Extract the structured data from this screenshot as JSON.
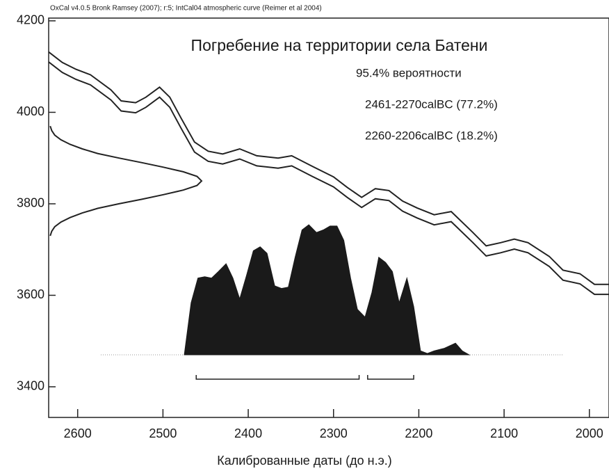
{
  "chart_data": {
    "type": "calibration",
    "header": "OxCal v4.0.5 Bronk Ramsey (2007); r:5; IntCal04 atmospheric curve (Reimer et al 2004)",
    "title": "Погребение на территории села Батени",
    "probability_label": "95.4% вероятности",
    "xlabel": "Калиброванные даты (до н.э.)",
    "xlim": [
      2634,
      1977
    ],
    "ylim": [
      3333,
      4206
    ],
    "xticks": [
      2600,
      2500,
      2400,
      2300,
      2200,
      2100,
      2000
    ],
    "yticks": [
      3400,
      3600,
      3800,
      4000,
      4200
    ],
    "x": [
      2634,
      2618,
      2602,
      2585,
      2561,
      2549,
      2532,
      2520,
      2504,
      2492,
      2479,
      2463,
      2447,
      2430,
      2410,
      2390,
      2365,
      2349,
      2325,
      2300,
      2284,
      2267,
      2251,
      2235,
      2219,
      2202,
      2182,
      2162,
      2137,
      2121,
      2104,
      2088,
      2072,
      2047,
      2031,
      2011,
      1994,
      1977
    ],
    "series": [
      {
        "color": "#222222",
        "values": [
          4132,
          4109,
          4094,
          4082,
          4049,
          4025,
          4021,
          4033,
          4055,
          4033,
          3988,
          3935,
          3915,
          3909,
          3920,
          3905,
          3900,
          3905,
          3882,
          3859,
          3836,
          3814,
          3833,
          3829,
          3806,
          3791,
          3776,
          3783,
          3738,
          3708,
          3715,
          3723,
          3715,
          3685,
          3655,
          3647,
          3624,
          3624
        ]
      },
      {
        "color": "#222222",
        "values": [
          4110,
          4087,
          4072,
          4060,
          4027,
          4003,
          3999,
          4011,
          4033,
          4011,
          3966,
          3913,
          3893,
          3887,
          3898,
          3883,
          3878,
          3883,
          3860,
          3837,
          3814,
          3792,
          3811,
          3807,
          3784,
          3769,
          3754,
          3761,
          3716,
          3686,
          3693,
          3701,
          3693,
          3663,
          3633,
          3625,
          3602,
          3602
        ]
      }
    ],
    "c14": {
      "y": [
        3970,
        3960,
        3950,
        3940,
        3930,
        3920,
        3910,
        3900,
        3890,
        3880,
        3870,
        3860,
        3850,
        3840,
        3830,
        3820,
        3810,
        3800,
        3790,
        3780,
        3770,
        3760,
        3750,
        3740,
        3730
      ],
      "values": [
        0.01,
        0.02,
        0.04,
        0.08,
        0.14,
        0.22,
        0.32,
        0.46,
        0.61,
        0.75,
        0.88,
        0.97,
        1,
        0.97,
        0.88,
        0.75,
        0.61,
        0.46,
        0.32,
        0.22,
        0.14,
        0.08,
        0.04,
        0.02,
        0.01
      ]
    },
    "posterior": {
      "color": "#1a1a1a",
      "x": [
        2475,
        2467,
        2459,
        2451,
        2443,
        2435,
        2426,
        2418,
        2410,
        2402,
        2394,
        2386,
        2378,
        2369,
        2361,
        2353,
        2345,
        2337,
        2329,
        2320,
        2312,
        2304,
        2296,
        2288,
        2280,
        2272,
        2263,
        2255,
        2247,
        2239,
        2231,
        2223,
        2214,
        2206,
        2198,
        2190,
        2182,
        2170,
        2157,
        2149,
        2141
      ],
      "values": [
        0,
        0.4,
        0.59,
        0.6,
        0.59,
        0.64,
        0.7,
        0.59,
        0.43,
        0.61,
        0.8,
        0.83,
        0.78,
        0.53,
        0.51,
        0.52,
        0.75,
        0.96,
        1,
        0.94,
        0.96,
        0.99,
        0.99,
        0.88,
        0.59,
        0.35,
        0.29,
        0.48,
        0.75,
        0.71,
        0.64,
        0.4,
        0.59,
        0.37,
        0.03,
        0.01,
        0.03,
        0.05,
        0.09,
        0.03,
        0
      ]
    },
    "ranges": [
      {
        "label": "2461-2270calBC (77.2%)",
        "from": 2461,
        "to": 2270
      },
      {
        "label": "2260-2206calBC (18.2%)",
        "from": 2260,
        "to": 2206
      }
    ]
  }
}
